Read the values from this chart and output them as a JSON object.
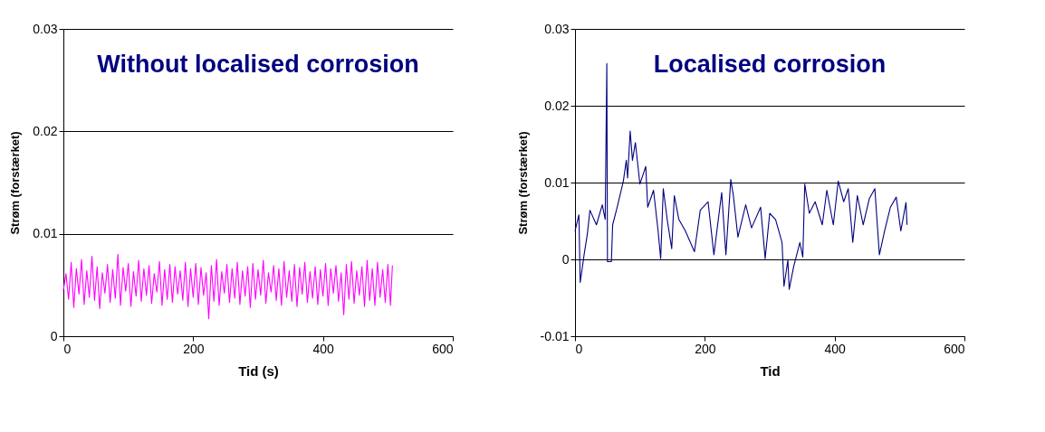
{
  "chart_data": [
    {
      "type": "line",
      "title": "Without localised corrosion",
      "xlabel": "Tid (s)",
      "ylabel": "Strøm (forstærket)",
      "xlim": [
        0,
        600
      ],
      "xticks": [
        0,
        200,
        400,
        600
      ],
      "ylim": [
        0,
        0.03
      ],
      "yticks": [
        0,
        0.01,
        0.02,
        0.03
      ],
      "grid": "y",
      "marker": "none",
      "line_style": "solid",
      "series": [
        {
          "color": "#ff00ff",
          "x": [
            0,
            4,
            8,
            12,
            16,
            20,
            24,
            28,
            32,
            36,
            40,
            44,
            48,
            52,
            56,
            60,
            64,
            68,
            72,
            76,
            80,
            84,
            88,
            92,
            96,
            100,
            104,
            108,
            112,
            116,
            120,
            124,
            128,
            132,
            136,
            140,
            144,
            148,
            152,
            156,
            160,
            164,
            168,
            172,
            176,
            180,
            184,
            188,
            192,
            196,
            200,
            204,
            208,
            212,
            216,
            220,
            224,
            228,
            232,
            236,
            240,
            244,
            248,
            252,
            256,
            260,
            264,
            268,
            272,
            276,
            280,
            284,
            288,
            292,
            296,
            300,
            304,
            308,
            312,
            316,
            320,
            324,
            328,
            332,
            336,
            340,
            344,
            348,
            352,
            356,
            360,
            364,
            368,
            372,
            376,
            380,
            384,
            388,
            392,
            396,
            400,
            404,
            408,
            412,
            416,
            420,
            424,
            428,
            432,
            436,
            440,
            444,
            448,
            452,
            456,
            460,
            464,
            468,
            472,
            476,
            480,
            484,
            488,
            492,
            496,
            500,
            504,
            507
          ],
          "values": [
            0.0045,
            0.0061,
            0.0036,
            0.0072,
            0.0028,
            0.0066,
            0.0041,
            0.0075,
            0.0031,
            0.0064,
            0.0038,
            0.0078,
            0.0035,
            0.0068,
            0.0027,
            0.0062,
            0.0042,
            0.007,
            0.0033,
            0.0065,
            0.0037,
            0.008,
            0.003,
            0.0067,
            0.0044,
            0.0071,
            0.0029,
            0.0063,
            0.0039,
            0.0074,
            0.0034,
            0.0066,
            0.004,
            0.0069,
            0.0032,
            0.0061,
            0.0043,
            0.0073,
            0.003,
            0.0065,
            0.0036,
            0.007,
            0.0033,
            0.0068,
            0.0041,
            0.0064,
            0.0035,
            0.0072,
            0.0029,
            0.0066,
            0.0038,
            0.0071,
            0.0031,
            0.0067,
            0.004,
            0.0062,
            0.0017,
            0.0069,
            0.0034,
            0.0075,
            0.003,
            0.0063,
            0.0042,
            0.007,
            0.0033,
            0.0066,
            0.0037,
            0.0072,
            0.0031,
            0.0064,
            0.0039,
            0.0068,
            0.0028,
            0.0071,
            0.0036,
            0.0065,
            0.004,
            0.0074,
            0.0032,
            0.0062,
            0.0043,
            0.0069,
            0.0035,
            0.0066,
            0.003,
            0.0073,
            0.0038,
            0.0064,
            0.0034,
            0.007,
            0.0029,
            0.0067,
            0.0041,
            0.0072,
            0.0033,
            0.0063,
            0.0037,
            0.0068,
            0.0031,
            0.0065,
            0.0039,
            0.0071,
            0.003,
            0.0066,
            0.0042,
            0.0069,
            0.0034,
            0.0062,
            0.0021,
            0.007,
            0.0036,
            0.0073,
            0.0032,
            0.0064,
            0.004,
            0.0068,
            0.0029,
            0.0074,
            0.0035,
            0.0066,
            0.003,
            0.0072,
            0.0038,
            0.0065,
            0.0033,
            0.007,
            0.003,
            0.0069
          ]
        }
      ]
    },
    {
      "type": "line",
      "title": "Localised corrosion",
      "xlabel": "Tid",
      "ylabel": "Strøm (forstærket)",
      "xlim": [
        0,
        600
      ],
      "xticks": [
        0,
        200,
        400,
        600
      ],
      "ylim": [
        -0.01,
        0.03
      ],
      "yticks": [
        -0.01,
        0,
        0.01,
        0.02,
        0.03
      ],
      "grid": "y",
      "marker": "none",
      "line_style": "solid",
      "series": [
        {
          "color": "#000080",
          "x": [
            0,
            6,
            8,
            14,
            19,
            23,
            33,
            42,
            46.5,
            49,
            50,
            56,
            58,
            65,
            74.5,
            79,
            81,
            85,
            88.5,
            93,
            100,
            109,
            112,
            121,
            128,
            132,
            136,
            142,
            149,
            153,
            160,
            170,
            184,
            193,
            205,
            214,
            226,
            232.5,
            240,
            244,
            251,
            263,
            272,
            286,
            293,
            300,
            309,
            319,
            322,
            328,
            330,
            337,
            346.5,
            351,
            354,
            361,
            370,
            381,
            388,
            398,
            405.6,
            414,
            421,
            428,
            435,
            444,
            453.5,
            462,
            469,
            477,
            486,
            495,
            502,
            510,
            511.6
          ],
          "values": [
            0.0037,
            0.0058,
            -0.003,
            0.0006,
            0.0033,
            0.0064,
            0.0045,
            0.0071,
            0.0052,
            0.0255,
            -0.0003,
            -0.0003,
            0.0045,
            0.0068,
            0.0102,
            0.0129,
            0.0106,
            0.0167,
            0.0129,
            0.0152,
            0.0098,
            0.0121,
            0.0068,
            0.009,
            0.0037,
            0.0001,
            0.0092,
            0.0052,
            0.0014,
            0.0083,
            0.0052,
            0.0037,
            0.001,
            0.0064,
            0.0075,
            0.0006,
            0.0087,
            0.0006,
            0.0104,
            0.0083,
            0.0029,
            0.0071,
            0.0041,
            0.0068,
            0.0001,
            0.006,
            0.0052,
            0.0022,
            -0.0035,
            -0.0001,
            -0.0039,
            -0.0009,
            0.0022,
            0.0003,
            0.0098,
            0.006,
            0.0075,
            0.0045,
            0.009,
            0.0045,
            0.0102,
            0.0075,
            0.0092,
            0.0022,
            0.0083,
            0.0045,
            0.0079,
            0.0092,
            0.0006,
            0.0037,
            0.0068,
            0.0081,
            0.0037,
            0.0074,
            0.0045
          ]
        }
      ]
    }
  ]
}
